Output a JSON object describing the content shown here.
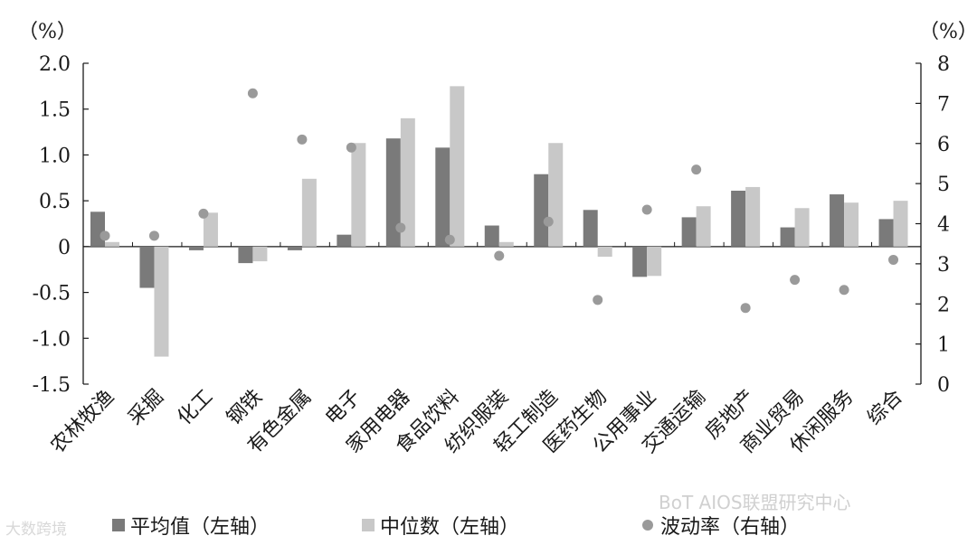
{
  "chart_data": {
    "type": "bar",
    "left_axis_unit": "（%）",
    "right_axis_unit": "（%）",
    "left_ylim": [
      -1.5,
      2.0
    ],
    "left_ticks": [
      "2.0",
      "1.5",
      "1.0",
      "0.5",
      "0",
      "-0.5",
      "-1.0",
      "-1.5"
    ],
    "left_tick_values": [
      2.0,
      1.5,
      1.0,
      0.5,
      0,
      -0.5,
      -1.0,
      -1.5
    ],
    "right_ylim": [
      0,
      8
    ],
    "right_ticks": [
      "8",
      "7",
      "6",
      "5",
      "4",
      "3",
      "2",
      "1",
      "0"
    ],
    "right_tick_values": [
      8,
      7,
      6,
      5,
      4,
      3,
      2,
      1,
      0
    ],
    "categories": [
      "农林牧渔",
      "采掘",
      "化工",
      "钢铁",
      "有色金属",
      "电子",
      "家用电器",
      "食品饮料",
      "纺织服装",
      "轻工制造",
      "医药生物",
      "公用事业",
      "交通运输",
      "房地产",
      "商业贸易",
      "休闲服务",
      "综合"
    ],
    "series": [
      {
        "name": "平均值（左轴）",
        "kind": "bar",
        "axis": "left",
        "color": "#7a7a7a",
        "values": [
          0.38,
          -0.45,
          -0.04,
          -0.18,
          -0.04,
          0.13,
          1.18,
          1.08,
          0.23,
          0.79,
          0.4,
          -0.33,
          0.32,
          0.61,
          0.21,
          0.57,
          0.3
        ]
      },
      {
        "name": "中位数（左轴）",
        "kind": "bar",
        "axis": "left",
        "color": "#c8c8c8",
        "values": [
          0.05,
          -1.2,
          0.37,
          -0.16,
          0.74,
          1.13,
          1.4,
          1.75,
          0.05,
          1.13,
          -0.11,
          -0.32,
          0.44,
          0.65,
          0.42,
          0.48,
          0.5
        ]
      },
      {
        "name": "波动率（右轴）",
        "kind": "scatter",
        "axis": "right",
        "color": "#9a9a9a",
        "values": [
          3.7,
          3.7,
          4.25,
          7.25,
          6.1,
          5.9,
          3.9,
          3.6,
          3.2,
          4.05,
          2.1,
          4.35,
          5.35,
          1.9,
          2.6,
          2.35,
          3.1
        ]
      }
    ]
  },
  "watermarks": {
    "left": "大数跨境",
    "right": "BoT AIOS联盟研究中心"
  }
}
